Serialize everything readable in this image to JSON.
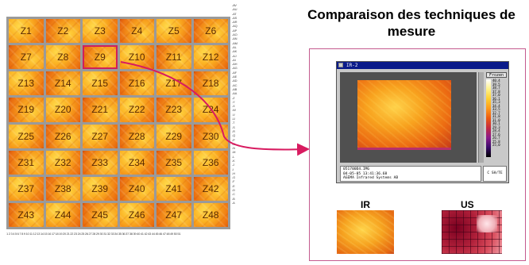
{
  "title": "Comparaison des techniques de mesure",
  "zones": [
    "Z1",
    "Z2",
    "Z3",
    "Z4",
    "Z5",
    "Z6",
    "Z7",
    "Z8",
    "Z9",
    "Z10",
    "Z11",
    "Z12",
    "Z13",
    "Z14",
    "Z15",
    "Z16",
    "Z17",
    "Z18",
    "Z19",
    "Z20",
    "Z21",
    "Z22",
    "Z23",
    "Z24",
    "Z25",
    "Z26",
    "Z27",
    "Z28",
    "Z29",
    "Z30",
    "Z31",
    "Z32",
    "Z33",
    "Z34",
    "Z35",
    "Z36",
    "Z37",
    "Z38",
    "Z39",
    "Z40",
    "Z41",
    "Z42",
    "Z43",
    "Z44",
    "Z45",
    "Z46",
    "Z47",
    "Z48"
  ],
  "selected_zone": "Z9",
  "colors": {
    "selection": "#d0205a",
    "arrow": "#d81b60",
    "frame": "#c45a8e"
  },
  "axes": {
    "right_labels": [
      "AV",
      "AU",
      "AT",
      "AS",
      "AR",
      "AQ",
      "AP",
      "AO",
      "AN",
      "AM",
      "AL",
      "AK",
      "AJ",
      "AI",
      "AH",
      "AG",
      "AF",
      "AE",
      "AD",
      "AC",
      "AB",
      "AA",
      "Z",
      "Y",
      "X",
      "W",
      "V",
      "U",
      "T",
      "S",
      "R",
      "Q",
      "P",
      "O",
      "N",
      "M",
      "L",
      "K",
      "J",
      "I",
      "H",
      "G",
      "F",
      "E",
      "D",
      "C",
      "B",
      "A"
    ],
    "bottom_labels": "1 2 3 4 5 6 7 8 9 10 11 12 13 14 15 16 17 18 19 20 21 22 23 24 25 26 27 28 29 30 31 32 33 34 35 36 37 38 39 40 41 42 43 44 45 46 47 48 49 50 51"
  },
  "ir_window": {
    "title": "IR-2",
    "palette_button": "Frozen",
    "scale_values": [
      "40,4",
      "39,5",
      "38,7",
      "37,8",
      "37,0",
      "36,1",
      "35,3",
      "34,4",
      "33,5",
      "32,7",
      "31,8",
      "31,0",
      "30,1",
      "29,3",
      "28,4",
      "27,6",
      "26,7",
      "25,8",
      "25,0"
    ],
    "info_line1": "051700D4.IMG",
    "info_line2": "04-05-05 13:41:36.68",
    "info_line3": "AGEMA Infrared Systems AB",
    "status": "C  SH/TE"
  },
  "ir_label": "IR",
  "us_label": "US"
}
